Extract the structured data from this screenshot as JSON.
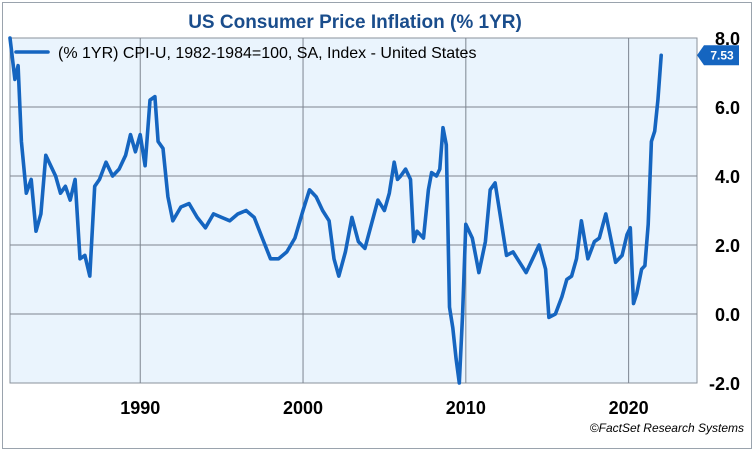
{
  "chart_data": {
    "type": "line",
    "title": "US Consumer Price Inflation (% 1YR)",
    "legend": "(% 1YR) CPI-U, 1982-1984=100, SA, Index - United States",
    "legend_position": "top-left",
    "last_value_label": "7.53",
    "source": "©FactSet Research Systems",
    "xlabel": "",
    "ylabel": "",
    "xlim": [
      1982.0,
      2024.2
    ],
    "ylim": [
      -2.0,
      8.0
    ],
    "x_ticks": [
      1990,
      2000,
      2010,
      2020
    ],
    "x_tick_labels": [
      "1990",
      "2000",
      "2010",
      "2020"
    ],
    "y_ticks": [
      -2.0,
      0.0,
      2.0,
      4.0,
      6.0,
      8.0
    ],
    "y_tick_labels": [
      "-2.0",
      "0.0",
      "2.0",
      "4.0",
      "6.0",
      "8.0"
    ],
    "grid": true,
    "colors": {
      "line": "#1565c0",
      "plot_bg": "#eaf4fd",
      "title": "#1a4d8c",
      "grid": "#7d8590",
      "badge": "#1565c0"
    },
    "series": [
      {
        "name": "(% 1YR) CPI-U, 1982-1984=100, SA, Index - United States",
        "x": [
          1982.0,
          1982.3,
          1982.5,
          1982.7,
          1983.0,
          1983.3,
          1983.6,
          1983.9,
          1984.2,
          1984.5,
          1984.8,
          1985.1,
          1985.4,
          1985.7,
          1986.0,
          1986.3,
          1986.6,
          1986.9,
          1987.2,
          1987.5,
          1987.9,
          1988.3,
          1988.7,
          1989.1,
          1989.4,
          1989.7,
          1990.0,
          1990.3,
          1990.6,
          1990.9,
          1991.1,
          1991.4,
          1991.7,
          1992.0,
          1992.5,
          1993.0,
          1993.5,
          1994.0,
          1994.5,
          1995.0,
          1995.5,
          1996.0,
          1996.5,
          1997.0,
          1997.5,
          1998.0,
          1998.5,
          1999.0,
          1999.5,
          2000.0,
          2000.4,
          2000.8,
          2001.2,
          2001.6,
          2001.9,
          2002.2,
          2002.6,
          2003.0,
          2003.4,
          2003.8,
          2004.2,
          2004.6,
          2005.0,
          2005.3,
          2005.6,
          2005.8,
          2006.0,
          2006.3,
          2006.6,
          2006.8,
          2007.0,
          2007.4,
          2007.7,
          2007.9,
          2008.2,
          2008.4,
          2008.6,
          2008.8,
          2009.0,
          2009.2,
          2009.4,
          2009.6,
          2009.8,
          2010.0,
          2010.4,
          2010.8,
          2011.2,
          2011.5,
          2011.8,
          2012.1,
          2012.5,
          2012.9,
          2013.3,
          2013.7,
          2014.1,
          2014.5,
          2014.9,
          2015.1,
          2015.5,
          2015.9,
          2016.2,
          2016.5,
          2016.8,
          2017.1,
          2017.5,
          2017.9,
          2018.2,
          2018.6,
          2018.9,
          2019.2,
          2019.6,
          2019.9,
          2020.1,
          2020.3,
          2020.5,
          2020.8,
          2021.0,
          2021.2,
          2021.4,
          2021.6,
          2021.8,
          2022.0
        ],
        "values": [
          8.4,
          6.8,
          7.2,
          5.0,
          3.5,
          3.9,
          2.4,
          2.9,
          4.6,
          4.3,
          4.0,
          3.5,
          3.7,
          3.3,
          3.9,
          1.6,
          1.7,
          1.1,
          3.7,
          3.9,
          4.4,
          4.0,
          4.2,
          4.6,
          5.2,
          4.7,
          5.2,
          4.3,
          6.2,
          6.3,
          5.0,
          4.8,
          3.4,
          2.7,
          3.1,
          3.2,
          2.8,
          2.5,
          2.9,
          2.8,
          2.7,
          2.9,
          3.0,
          2.8,
          2.2,
          1.6,
          1.6,
          1.8,
          2.2,
          3.0,
          3.6,
          3.4,
          3.0,
          2.7,
          1.6,
          1.1,
          1.8,
          2.8,
          2.1,
          1.9,
          2.6,
          3.3,
          3.0,
          3.5,
          4.4,
          3.9,
          4.0,
          4.2,
          3.9,
          2.1,
          2.4,
          2.2,
          3.6,
          4.1,
          4.0,
          4.2,
          5.4,
          4.9,
          0.2,
          -0.4,
          -1.3,
          -2.0,
          0.0,
          2.6,
          2.2,
          1.2,
          2.1,
          3.6,
          3.8,
          2.9,
          1.7,
          1.8,
          1.5,
          1.2,
          1.6,
          2.0,
          1.3,
          -0.1,
          0.0,
          0.5,
          1.0,
          1.1,
          1.6,
          2.7,
          1.6,
          2.1,
          2.2,
          2.9,
          2.2,
          1.5,
          1.7,
          2.3,
          2.5,
          0.3,
          0.6,
          1.3,
          1.4,
          2.6,
          5.0,
          5.3,
          6.2,
          7.5
        ]
      }
    ]
  }
}
